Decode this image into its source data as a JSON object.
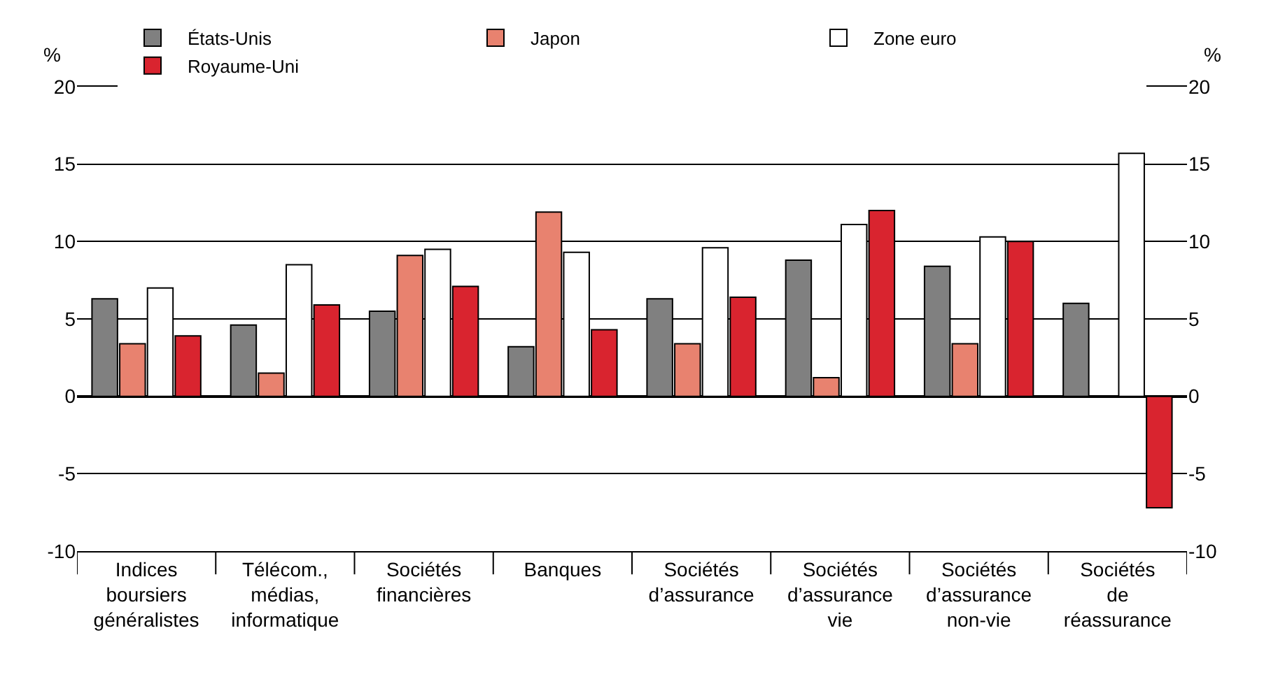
{
  "chart_data": {
    "type": "bar",
    "categories": [
      "Indices\nboursiers\ngénéralistes",
      "Télécom.,\nmédias,\ninformatique",
      "Sociétés\nfinancières",
      "Banques",
      "Sociétés\nd’assurance",
      "Sociétés\nd’assurance\nvie",
      "Sociétés\nd’assurance\nnon-vie",
      "Sociétés\nde\nréassurance"
    ],
    "series": [
      {
        "name": "États-Unis",
        "color": "#808080",
        "values": [
          6.3,
          4.6,
          5.5,
          3.2,
          6.3,
          8.8,
          8.4,
          6.0
        ]
      },
      {
        "name": "Japon",
        "color": "#e8826f",
        "values": [
          3.4,
          1.5,
          9.1,
          11.9,
          3.4,
          1.2,
          3.4,
          null
        ]
      },
      {
        "name": "Zone euro",
        "color": "#ffffff",
        "values": [
          7.0,
          8.5,
          9.5,
          9.3,
          9.6,
          11.1,
          10.3,
          15.7
        ]
      },
      {
        "name": "Royaume-Uni",
        "color": "#d9242f",
        "values": [
          3.9,
          5.9,
          7.1,
          4.3,
          6.4,
          12.0,
          10.0,
          -7.2
        ]
      }
    ],
    "ylabel": "%",
    "y2label": "%",
    "ylim": [
      -10,
      20
    ],
    "yticks": [
      -10,
      -5,
      0,
      5,
      10,
      15,
      20
    ],
    "y2lim": [
      -10,
      20
    ],
    "y2ticks": [
      -10,
      -5,
      0,
      5,
      10,
      15,
      20
    ],
    "grid": "y",
    "legend": "top"
  }
}
